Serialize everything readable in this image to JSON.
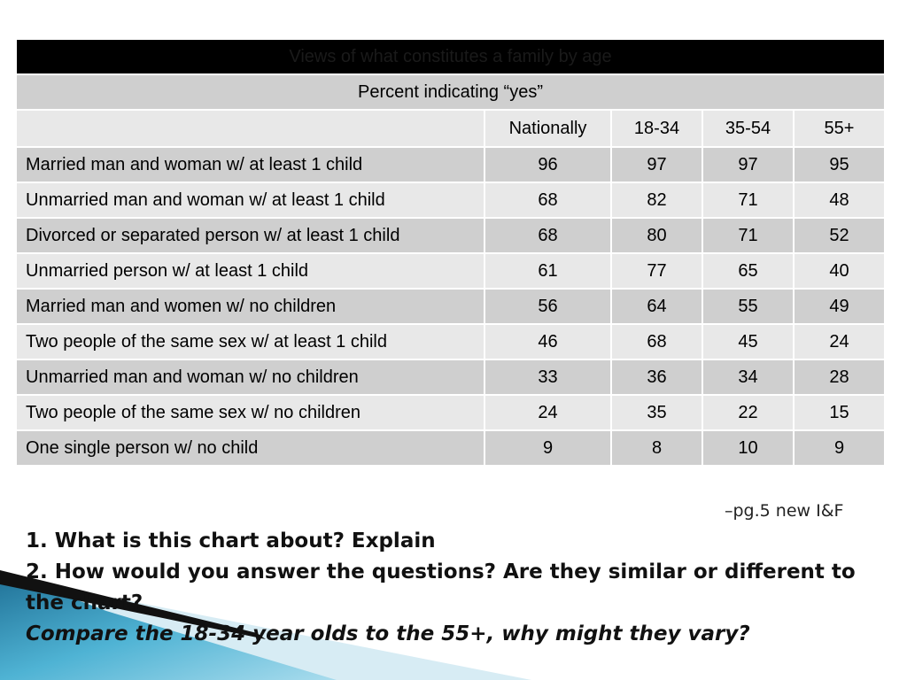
{
  "table": {
    "title": "Views of what constitutes a family by age",
    "subtitle": "Percent indicating “yes”",
    "columns": [
      "",
      "Nationally",
      "18-34",
      "35-54",
      "55+"
    ],
    "rows": [
      {
        "label": "Married man and woman w/ at least 1 child",
        "values": [
          "96",
          "97",
          "97",
          "95"
        ]
      },
      {
        "label": "Unmarried man and  woman w/ at least 1 child",
        "values": [
          "68",
          "82",
          "71",
          "48"
        ]
      },
      {
        "label": "Divorced or separated person w/ at least 1 child",
        "values": [
          "68",
          "80",
          "71",
          "52"
        ]
      },
      {
        "label": "Unmarried person w/ at least 1 child",
        "values": [
          "61",
          "77",
          "65",
          "40"
        ]
      },
      {
        "label": "Married man and women w/ no children",
        "values": [
          "56",
          "64",
          "55",
          "49"
        ]
      },
      {
        "label": "Two people of the same sex w/ at least 1 child",
        "values": [
          "46",
          "68",
          "45",
          "24"
        ]
      },
      {
        "label": "Unmarried man and woman w/ no children",
        "values": [
          "33",
          "36",
          "34",
          "28"
        ]
      },
      {
        "label": "Two people of the same sex w/ no children",
        "values": [
          "24",
          "35",
          "22",
          "15"
        ]
      },
      {
        "label": "One single person w/ no child",
        "values": [
          "9",
          "8",
          "10",
          "9"
        ]
      }
    ]
  },
  "source": "–pg.5 new I&F",
  "questions": [
    "1. What is this chart about? Explain",
    "2. How would you answer the questions? Are they similar or different to the chart?",
    "Compare the 18-34 year olds to the 55+, why might they vary?"
  ],
  "colors": {
    "title_bar": "#000000",
    "row_dark": "#cfcfcf",
    "row_light": "#e8e8e8",
    "decor_blue": "#3a9cc0"
  }
}
